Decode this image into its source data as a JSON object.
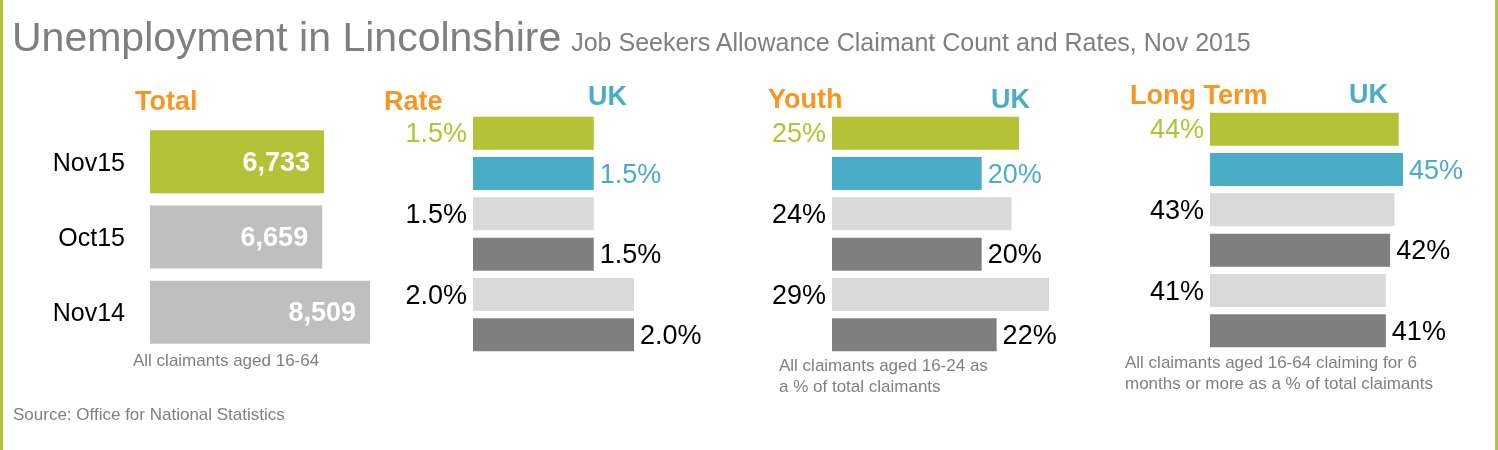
{
  "chart_data": [
    {
      "type": "other",
      "title": "Unemployment in Lincolnshire",
      "subtitle": "Job Seekers Allowance Claimant Count and Rates, Nov 2015",
      "annotations": [
        "Source: Office for National Statistics"
      ]
    },
    {
      "type": "bar",
      "orientation": "horizontal",
      "title": "Total",
      "categories": [
        "Nov15",
        "Oct15",
        "Nov14"
      ],
      "values": [
        6733,
        6659,
        8509
      ],
      "colors": [
        "#b3c236",
        "#bfbfbf",
        "#bfbfbf"
      ],
      "value_labels": [
        "6,733",
        "6,659",
        "8,509"
      ],
      "tick_labels": "y",
      "annotations": [
        "All claimants aged 16-64"
      ]
    },
    {
      "type": "bar",
      "orientation": "horizontal",
      "title": "Rate",
      "tick_labels": false,
      "categories": [
        null,
        null,
        null,
        null,
        null,
        null
      ],
      "values": [
        1.5,
        1.5,
        1.5,
        1.5,
        2.0,
        2.0
      ],
      "colors": [
        "#b3c236",
        "#4bacc6",
        "#d9d9d9",
        "#7f7f7f",
        "#d9d9d9",
        "#7f7f7f"
      ],
      "value_labels": [
        "1.5%",
        "1.5%",
        "1.5%",
        "1.5%",
        "2.0%",
        "2.0%"
      ],
      "annotations": [
        "UK"
      ]
    },
    {
      "type": "bar",
      "orientation": "horizontal",
      "title": "Youth",
      "tick_labels": false,
      "categories": [
        null,
        null,
        null,
        null,
        null,
        null
      ],
      "values": [
        25,
        20,
        24,
        20,
        29,
        22
      ],
      "colors": [
        "#b3c236",
        "#4bacc6",
        "#d9d9d9",
        "#7f7f7f",
        "#d9d9d9",
        "#7f7f7f"
      ],
      "value_labels": [
        "25%",
        "20%",
        "24%",
        "20%",
        "29%",
        "22%"
      ],
      "annotations": [
        "UK",
        "All claimants aged 16-24 as a % of total claimants"
      ]
    },
    {
      "type": "bar",
      "orientation": "horizontal",
      "title": "Long Term",
      "tick_labels": false,
      "categories": [
        null,
        null,
        null,
        null,
        null,
        null
      ],
      "values": [
        44,
        45,
        43,
        42,
        41,
        41
      ],
      "colors": [
        "#b3c236",
        "#4bacc6",
        "#d9d9d9",
        "#7f7f7f",
        "#d9d9d9",
        "#7f7f7f"
      ],
      "value_labels": [
        "44%",
        "45%",
        "43%",
        "42%",
        "41%",
        "41%"
      ],
      "annotations": [
        "UK",
        "All claimants aged 16-64 claiming for 6 months or more as a % of total claimants"
      ]
    }
  ]
}
